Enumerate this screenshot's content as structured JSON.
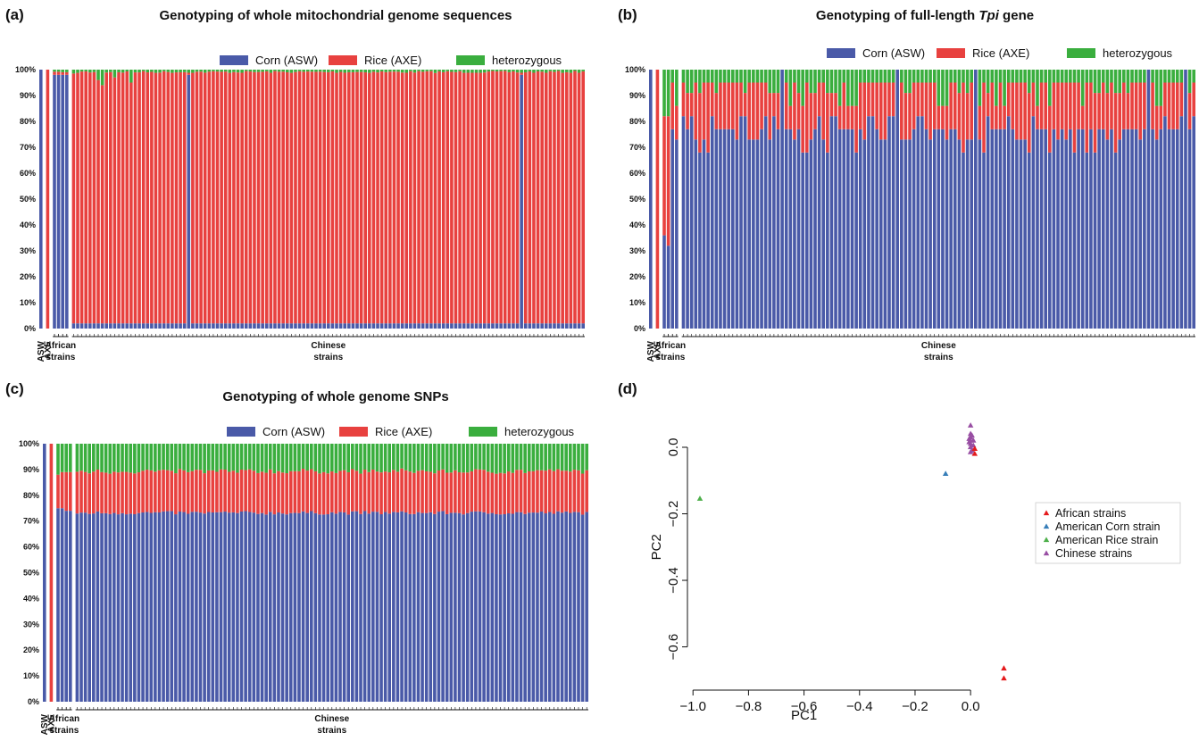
{
  "colors": {
    "corn": "#4a5aa8",
    "rice": "#e8413f",
    "heterozygous": "#3aae3e",
    "african": "#e41a1c",
    "american_corn": "#377eb8",
    "american_rice": "#4daf4a",
    "chinese": "#984ea3"
  },
  "legend": {
    "corn": "Corn (ASW)",
    "rice": "Rice (AXE)",
    "heterozygous": "heterozygous"
  },
  "yticks": [
    "0%",
    "10%",
    "20%",
    "30%",
    "40%",
    "50%",
    "60%",
    "70%",
    "80%",
    "90%",
    "100%"
  ],
  "groups": {
    "asw": "ASW",
    "axe": "AXE",
    "african_1": "African",
    "african_2": "strains",
    "chinese_1": "Chinese",
    "chinese_2": "strains"
  },
  "chart_data": [
    {
      "panel": "(a)",
      "type": "bar",
      "stacked": true,
      "title": "Genotyping of whole mitochondrial genome sequences",
      "title_parts": [
        {
          "text": "Genotyping of whole mitochondrial genome sequences",
          "italic": false
        }
      ],
      "ylim": [
        0,
        100
      ],
      "groups": [
        {
          "label": "ASW",
          "count": 1
        },
        {
          "label": "AXE",
          "count": 1
        },
        {
          "label": "African strains",
          "count": 4
        },
        {
          "label": "Chinese strains",
          "count": 125
        }
      ],
      "series": [
        {
          "name": "Corn (ASW)",
          "pattern": [
            100,
            0,
            98,
            98,
            98,
            98,
            2
          ]
        },
        {
          "name": "Rice (AXE)",
          "pattern": [
            0,
            100,
            1.2,
            1.2,
            1,
            1,
            97.5
          ]
        },
        {
          "name": "heterozygous",
          "pattern": [
            0,
            0,
            0.8,
            0.8,
            1,
            1,
            0.5
          ]
        }
      ],
      "notes": "Chinese strains are ~2% Corn, ~97% Rice, small heterozygous fraction; two Chinese strains (positions 28 and 109) are ~98% Corn."
    },
    {
      "panel": "(b)",
      "type": "bar",
      "stacked": true,
      "title": "Genotyping of full-length Tpi gene",
      "title_parts": [
        {
          "text": "Genotyping of full-length ",
          "italic": false
        },
        {
          "text": "Tpi",
          "italic": true
        },
        {
          "text": " gene",
          "italic": false
        }
      ],
      "ylim": [
        0,
        100
      ],
      "groups": [
        {
          "label": "ASW",
          "count": 1
        },
        {
          "label": "AXE",
          "count": 1
        },
        {
          "label": "African strains",
          "count": 4
        },
        {
          "label": "Chinese strains",
          "count": 125
        }
      ],
      "series": [
        {
          "name": "Corn (ASW)",
          "values_first": [
            100,
            0,
            36,
            32,
            77,
            73
          ]
        },
        {
          "name": "Rice (AXE)",
          "values_first": [
            0,
            100,
            46,
            50,
            18,
            13
          ]
        },
        {
          "name": "heterozygous",
          "values_first": [
            0,
            0,
            18,
            18,
            5,
            14
          ]
        }
      ],
      "notes": "Chinese strains: Corn ~68-82%, Rice ~0-19%, heterozygous remainder; some strains 100% Corn."
    },
    {
      "panel": "(c)",
      "type": "bar",
      "stacked": true,
      "title": "Genotyping of whole genome SNPs",
      "title_parts": [
        {
          "text": "Genotyping of whole genome SNPs",
          "italic": false
        }
      ],
      "ylim": [
        0,
        100
      ],
      "groups": [
        {
          "label": "ASW",
          "count": 1
        },
        {
          "label": "AXE",
          "count": 1
        },
        {
          "label": "African strains",
          "count": 4
        },
        {
          "label": "Chinese strains",
          "count": 125
        }
      ],
      "series": [
        {
          "name": "Corn (ASW)",
          "values_first": [
            100,
            0,
            75,
            75,
            74,
            74
          ],
          "chinese_typical": 73
        },
        {
          "name": "Rice (AXE)",
          "values_first": [
            0,
            100,
            13,
            14,
            15,
            15
          ],
          "chinese_typical": 15.5
        },
        {
          "name": "heterozygous",
          "values_first": [
            0,
            0,
            12,
            11,
            11,
            11
          ],
          "chinese_typical": 11.5
        }
      ]
    },
    {
      "panel": "(d)",
      "type": "scatter",
      "title": "",
      "xlabel": "PC1",
      "ylabel": "PC2",
      "xlim": [
        -1.02,
        0.17
      ],
      "ylim": [
        -0.73,
        0.11
      ],
      "xticks": [
        -1.0,
        -0.8,
        -0.6,
        -0.4,
        -0.2,
        0.0
      ],
      "xtick_labels": [
        "−1.0",
        "−0.8",
        "−0.6",
        "−0.4",
        "−0.2",
        "0.0"
      ],
      "yticks": [
        0.0,
        -0.2,
        -0.4,
        -0.6
      ],
      "ytick_labels": [
        "0.0",
        "−0.2",
        "−0.4",
        "−0.6"
      ],
      "marker": "triangle",
      "legend_position": "right",
      "series": [
        {
          "name": "African strains",
          "color": "#e41a1c",
          "points": [
            [
              0.015,
              -0.005
            ],
            [
              0.015,
              -0.02
            ],
            [
              0.12,
              -0.665
            ],
            [
              0.12,
              -0.695
            ]
          ]
        },
        {
          "name": "American Corn strain",
          "color": "#377eb8",
          "points": [
            [
              -0.09,
              -0.08
            ]
          ]
        },
        {
          "name": "American Rice strain",
          "color": "#4daf4a",
          "points": [
            [
              -0.975,
              -0.155
            ]
          ]
        },
        {
          "name": "Chinese strains",
          "color": "#984ea3",
          "points": [
            [
              0.0,
              0.065
            ],
            [
              0.0,
              0.04
            ],
            [
              0.0,
              0.03
            ],
            [
              0.0,
              0.02
            ],
            [
              0.0,
              0.01
            ],
            [
              0.0,
              0.0
            ],
            [
              0.005,
              -0.01
            ],
            [
              0.005,
              0.035
            ],
            [
              -0.005,
              0.025
            ],
            [
              0.01,
              0.02
            ],
            [
              -0.005,
              0.015
            ],
            [
              0.01,
              0.005
            ],
            [
              0.0,
              -0.015
            ]
          ]
        }
      ]
    }
  ]
}
